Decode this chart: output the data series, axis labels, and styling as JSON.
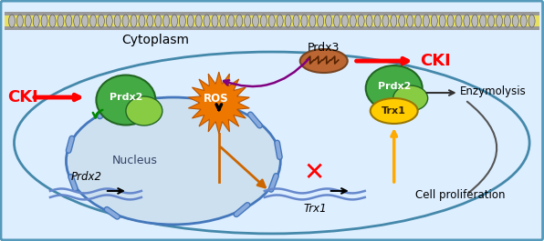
{
  "bg_color": "#ddeeff",
  "border_color": "#5599bb",
  "cytoplasm_label": "Cytoplasm",
  "nucleus_label": "Nucleus",
  "enzymolysis_label": "Enzymolysis",
  "cell_proliferation_label": "Cell proliferation",
  "CKI_left_label": "CKI",
  "CKI_right_label": "CKI",
  "Prdx2_left_label": "Prdx2",
  "Prdx2_right_label": "Prdx2",
  "Prdx3_label": "Prdx3",
  "ROS_label": "ROS",
  "Trx1_label": "Trx1",
  "Prdx2_gene_label": "Prdx2",
  "Trx1_gene_label": "Trx1"
}
